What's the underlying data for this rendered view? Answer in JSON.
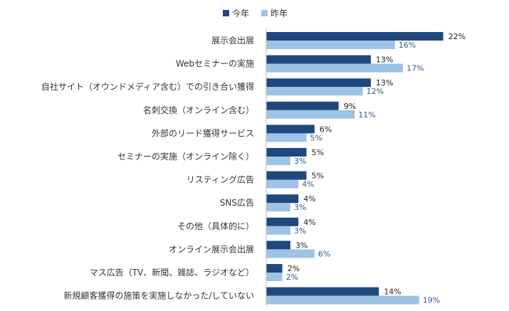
{
  "chart_data": {
    "type": "bar",
    "orientation": "horizontal",
    "title": "",
    "xlabel": "",
    "ylabel": "",
    "xlim": [
      0,
      25
    ],
    "grid": false,
    "legend_position": "top",
    "value_suffix": "%",
    "categories": [
      "展示会出展",
      "Webセミナーの実施",
      "自社サイト（オウンドメディア含む）での引き合い獲得",
      "名刺交換（オンライン含む）",
      "外部のリード獲得サービス",
      "セミナーの実施（オンライン除く）",
      "リスティング広告",
      "SNS広告",
      "その他（具体的に）",
      "オンライン展示会出展",
      "マス広告（TV、新聞、雑誌、ラジオなど）",
      "新規顧客獲得の施策を実施しなかった/していない"
    ],
    "series": [
      {
        "name": "今年",
        "color": "#1f497d",
        "values": [
          22,
          13,
          13,
          9,
          6,
          5,
          5,
          4,
          4,
          3,
          2,
          14
        ]
      },
      {
        "name": "昨年",
        "color": "#9dc3e6",
        "values": [
          16,
          17,
          12,
          11,
          5,
          3,
          4,
          3,
          3,
          6,
          2,
          19
        ]
      }
    ]
  }
}
